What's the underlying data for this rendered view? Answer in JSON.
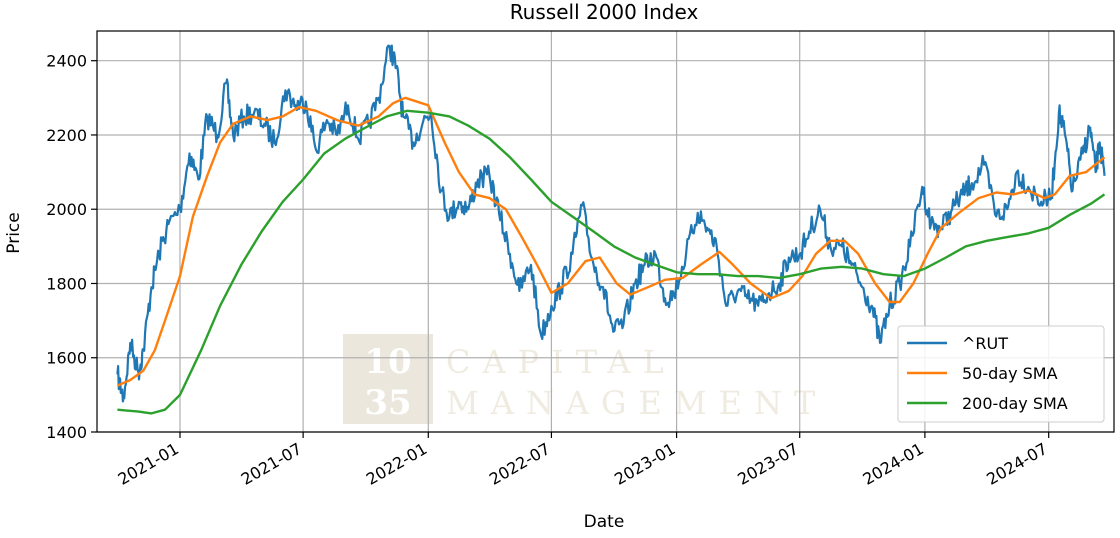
{
  "chart_data": {
    "type": "line",
    "title": "Russell 2000 Index",
    "xlabel": "Date",
    "ylabel": "Price",
    "ylim": [
      1400,
      2480
    ],
    "xlim": [
      "2020-09-01",
      "2024-10-05"
    ],
    "grid": true,
    "legend_position": "lower-right",
    "y_ticks": [
      "1400",
      "1600",
      "1800",
      "2000",
      "2200",
      "2400"
    ],
    "x_ticks": [
      "2021-01",
      "2021-07",
      "2022-01",
      "2022-07",
      "2023-01",
      "2023-07",
      "2024-01",
      "2024-07"
    ],
    "series": [
      {
        "name": "^RUT",
        "color": "#1f77b4",
        "points": [
          [
            "2020-10-01",
            1555
          ],
          [
            "2020-10-10",
            1490
          ],
          [
            "2020-10-20",
            1640
          ],
          [
            "2020-11-01",
            1560
          ],
          [
            "2020-11-08",
            1620
          ],
          [
            "2020-11-20",
            1790
          ],
          [
            "2020-12-01",
            1880
          ],
          [
            "2020-12-15",
            1960
          ],
          [
            "2021-01-01",
            2000
          ],
          [
            "2021-01-15",
            2150
          ],
          [
            "2021-01-28",
            2080
          ],
          [
            "2021-02-10",
            2250
          ],
          [
            "2021-02-25",
            2200
          ],
          [
            "2021-03-10",
            2340
          ],
          [
            "2021-03-20",
            2200
          ],
          [
            "2021-04-05",
            2250
          ],
          [
            "2021-04-20",
            2260
          ],
          [
            "2021-05-05",
            2230
          ],
          [
            "2021-05-20",
            2180
          ],
          [
            "2021-06-05",
            2320
          ],
          [
            "2021-06-20",
            2280
          ],
          [
            "2021-07-05",
            2290
          ],
          [
            "2021-07-20",
            2160
          ],
          [
            "2021-08-05",
            2240
          ],
          [
            "2021-08-20",
            2200
          ],
          [
            "2021-09-05",
            2280
          ],
          [
            "2021-09-20",
            2190
          ],
          [
            "2021-10-05",
            2230
          ],
          [
            "2021-10-20",
            2300
          ],
          [
            "2021-11-05",
            2440
          ],
          [
            "2021-11-15",
            2380
          ],
          [
            "2021-11-25",
            2250
          ],
          [
            "2021-12-10",
            2180
          ],
          [
            "2021-12-25",
            2240
          ],
          [
            "2022-01-05",
            2260
          ],
          [
            "2022-01-20",
            2050
          ],
          [
            "2022-02-01",
            1980
          ],
          [
            "2022-02-15",
            2020
          ],
          [
            "2022-03-01",
            2000
          ],
          [
            "2022-03-15",
            2080
          ],
          [
            "2022-04-01",
            2090
          ],
          [
            "2022-04-15",
            1990
          ],
          [
            "2022-05-01",
            1880
          ],
          [
            "2022-05-15",
            1780
          ],
          [
            "2022-06-01",
            1850
          ],
          [
            "2022-06-16",
            1660
          ],
          [
            "2022-07-01",
            1740
          ],
          [
            "2022-07-15",
            1790
          ],
          [
            "2022-08-01",
            1880
          ],
          [
            "2022-08-15",
            2010
          ],
          [
            "2022-09-01",
            1850
          ],
          [
            "2022-09-15",
            1790
          ],
          [
            "2022-09-30",
            1670
          ],
          [
            "2022-10-15",
            1690
          ],
          [
            "2022-11-01",
            1800
          ],
          [
            "2022-11-15",
            1850
          ],
          [
            "2022-12-01",
            1880
          ],
          [
            "2022-12-15",
            1760
          ],
          [
            "2022-12-28",
            1770
          ],
          [
            "2023-01-15",
            1880
          ],
          [
            "2023-02-01",
            1990
          ],
          [
            "2023-02-15",
            1950
          ],
          [
            "2023-03-01",
            1900
          ],
          [
            "2023-03-15",
            1740
          ],
          [
            "2023-04-01",
            1780
          ],
          [
            "2023-04-15",
            1760
          ],
          [
            "2023-05-01",
            1740
          ],
          [
            "2023-05-15",
            1770
          ],
          [
            "2023-06-01",
            1800
          ],
          [
            "2023-06-15",
            1870
          ],
          [
            "2023-07-01",
            1880
          ],
          [
            "2023-07-15",
            1940
          ],
          [
            "2023-07-31",
            2000
          ],
          [
            "2023-08-15",
            1900
          ],
          [
            "2023-09-01",
            1900
          ],
          [
            "2023-09-15",
            1850
          ],
          [
            "2023-10-01",
            1790
          ],
          [
            "2023-10-15",
            1740
          ],
          [
            "2023-10-27",
            1640
          ],
          [
            "2023-11-10",
            1740
          ],
          [
            "2023-11-25",
            1800
          ],
          [
            "2023-12-10",
            1900
          ],
          [
            "2023-12-28",
            2060
          ],
          [
            "2024-01-10",
            1960
          ],
          [
            "2024-01-25",
            1950
          ],
          [
            "2024-02-10",
            2000
          ],
          [
            "2024-02-25",
            2040
          ],
          [
            "2024-03-10",
            2070
          ],
          [
            "2024-03-28",
            2120
          ],
          [
            "2024-04-15",
            1980
          ],
          [
            "2024-05-01",
            2000
          ],
          [
            "2024-05-15",
            2100
          ],
          [
            "2024-06-01",
            2060
          ],
          [
            "2024-06-20",
            2020
          ],
          [
            "2024-07-05",
            2030
          ],
          [
            "2024-07-16",
            2260
          ],
          [
            "2024-07-25",
            2200
          ],
          [
            "2024-08-05",
            2050
          ],
          [
            "2024-08-20",
            2150
          ],
          [
            "2024-08-31",
            2220
          ],
          [
            "2024-09-08",
            2100
          ],
          [
            "2024-09-14",
            2180
          ],
          [
            "2024-09-21",
            2090
          ]
        ]
      },
      {
        "name": "50-day SMA",
        "color": "#ff7f0e",
        "points": [
          [
            "2020-10-01",
            1525
          ],
          [
            "2020-10-20",
            1540
          ],
          [
            "2020-11-08",
            1565
          ],
          [
            "2020-11-25",
            1620
          ],
          [
            "2020-12-10",
            1700
          ],
          [
            "2021-01-01",
            1820
          ],
          [
            "2021-01-20",
            1980
          ],
          [
            "2021-02-10",
            2090
          ],
          [
            "2021-03-01",
            2180
          ],
          [
            "2021-03-20",
            2230
          ],
          [
            "2021-04-15",
            2250
          ],
          [
            "2021-05-10",
            2240
          ],
          [
            "2021-06-01",
            2250
          ],
          [
            "2021-06-25",
            2275
          ],
          [
            "2021-07-20",
            2265
          ],
          [
            "2021-08-20",
            2240
          ],
          [
            "2021-09-20",
            2225
          ],
          [
            "2021-10-20",
            2250
          ],
          [
            "2021-11-10",
            2285
          ],
          [
            "2021-11-28",
            2300
          ],
          [
            "2022-01-01",
            2280
          ],
          [
            "2022-01-25",
            2180
          ],
          [
            "2022-02-15",
            2100
          ],
          [
            "2022-03-10",
            2040
          ],
          [
            "2022-04-01",
            2030
          ],
          [
            "2022-04-25",
            2000
          ],
          [
            "2022-05-20",
            1920
          ],
          [
            "2022-06-10",
            1850
          ],
          [
            "2022-07-01",
            1775
          ],
          [
            "2022-07-25",
            1800
          ],
          [
            "2022-08-20",
            1860
          ],
          [
            "2022-09-10",
            1870
          ],
          [
            "2022-10-05",
            1800
          ],
          [
            "2022-10-25",
            1770
          ],
          [
            "2022-11-20",
            1790
          ],
          [
            "2022-12-15",
            1810
          ],
          [
            "2023-01-10",
            1815
          ],
          [
            "2023-02-05",
            1850
          ],
          [
            "2023-03-05",
            1885
          ],
          [
            "2023-03-25",
            1850
          ],
          [
            "2023-04-20",
            1800
          ],
          [
            "2023-05-20",
            1760
          ],
          [
            "2023-06-15",
            1780
          ],
          [
            "2023-07-05",
            1820
          ],
          [
            "2023-07-25",
            1880
          ],
          [
            "2023-08-15",
            1915
          ],
          [
            "2023-09-05",
            1915
          ],
          [
            "2023-09-25",
            1880
          ],
          [
            "2023-10-20",
            1800
          ],
          [
            "2023-11-10",
            1750
          ],
          [
            "2023-11-25",
            1750
          ],
          [
            "2023-12-15",
            1800
          ],
          [
            "2024-01-05",
            1880
          ],
          [
            "2024-01-25",
            1950
          ],
          [
            "2024-02-20",
            1990
          ],
          [
            "2024-03-20",
            2030
          ],
          [
            "2024-04-15",
            2045
          ],
          [
            "2024-05-10",
            2040
          ],
          [
            "2024-06-01",
            2050
          ],
          [
            "2024-06-25",
            2030
          ],
          [
            "2024-07-10",
            2040
          ],
          [
            "2024-08-01",
            2090
          ],
          [
            "2024-08-25",
            2100
          ],
          [
            "2024-09-21",
            2140
          ]
        ]
      },
      {
        "name": "200-day SMA",
        "color": "#2ca02c",
        "points": [
          [
            "2020-10-01",
            1460
          ],
          [
            "2020-11-01",
            1455
          ],
          [
            "2020-11-20",
            1450
          ],
          [
            "2020-12-10",
            1460
          ],
          [
            "2021-01-01",
            1500
          ],
          [
            "2021-02-01",
            1620
          ],
          [
            "2021-03-01",
            1740
          ],
          [
            "2021-04-01",
            1850
          ],
          [
            "2021-05-01",
            1940
          ],
          [
            "2021-06-01",
            2020
          ],
          [
            "2021-07-01",
            2080
          ],
          [
            "2021-08-01",
            2150
          ],
          [
            "2021-09-01",
            2190
          ],
          [
            "2021-10-01",
            2220
          ],
          [
            "2021-11-01",
            2250
          ],
          [
            "2021-12-01",
            2265
          ],
          [
            "2022-01-01",
            2260
          ],
          [
            "2022-02-01",
            2250
          ],
          [
            "2022-03-01",
            2225
          ],
          [
            "2022-04-01",
            2190
          ],
          [
            "2022-05-01",
            2140
          ],
          [
            "2022-06-01",
            2080
          ],
          [
            "2022-07-01",
            2020
          ],
          [
            "2022-08-01",
            1980
          ],
          [
            "2022-09-01",
            1940
          ],
          [
            "2022-10-01",
            1900
          ],
          [
            "2022-11-01",
            1870
          ],
          [
            "2022-12-01",
            1850
          ],
          [
            "2023-01-01",
            1830
          ],
          [
            "2023-02-01",
            1825
          ],
          [
            "2023-03-01",
            1825
          ],
          [
            "2023-04-01",
            1820
          ],
          [
            "2023-05-01",
            1820
          ],
          [
            "2023-06-01",
            1815
          ],
          [
            "2023-07-01",
            1825
          ],
          [
            "2023-08-01",
            1840
          ],
          [
            "2023-09-01",
            1845
          ],
          [
            "2023-10-01",
            1840
          ],
          [
            "2023-11-01",
            1825
          ],
          [
            "2023-12-01",
            1820
          ],
          [
            "2024-01-01",
            1840
          ],
          [
            "2024-02-01",
            1870
          ],
          [
            "2024-03-01",
            1900
          ],
          [
            "2024-04-01",
            1915
          ],
          [
            "2024-05-01",
            1925
          ],
          [
            "2024-06-01",
            1935
          ],
          [
            "2024-07-01",
            1950
          ],
          [
            "2024-08-01",
            1985
          ],
          [
            "2024-09-01",
            2015
          ],
          [
            "2024-09-21",
            2040
          ]
        ]
      }
    ]
  },
  "watermark": {
    "logo_line1": "10",
    "logo_line2": "35",
    "text_line1": "CAPITAL",
    "text_line2": "MANAGEMENT"
  }
}
